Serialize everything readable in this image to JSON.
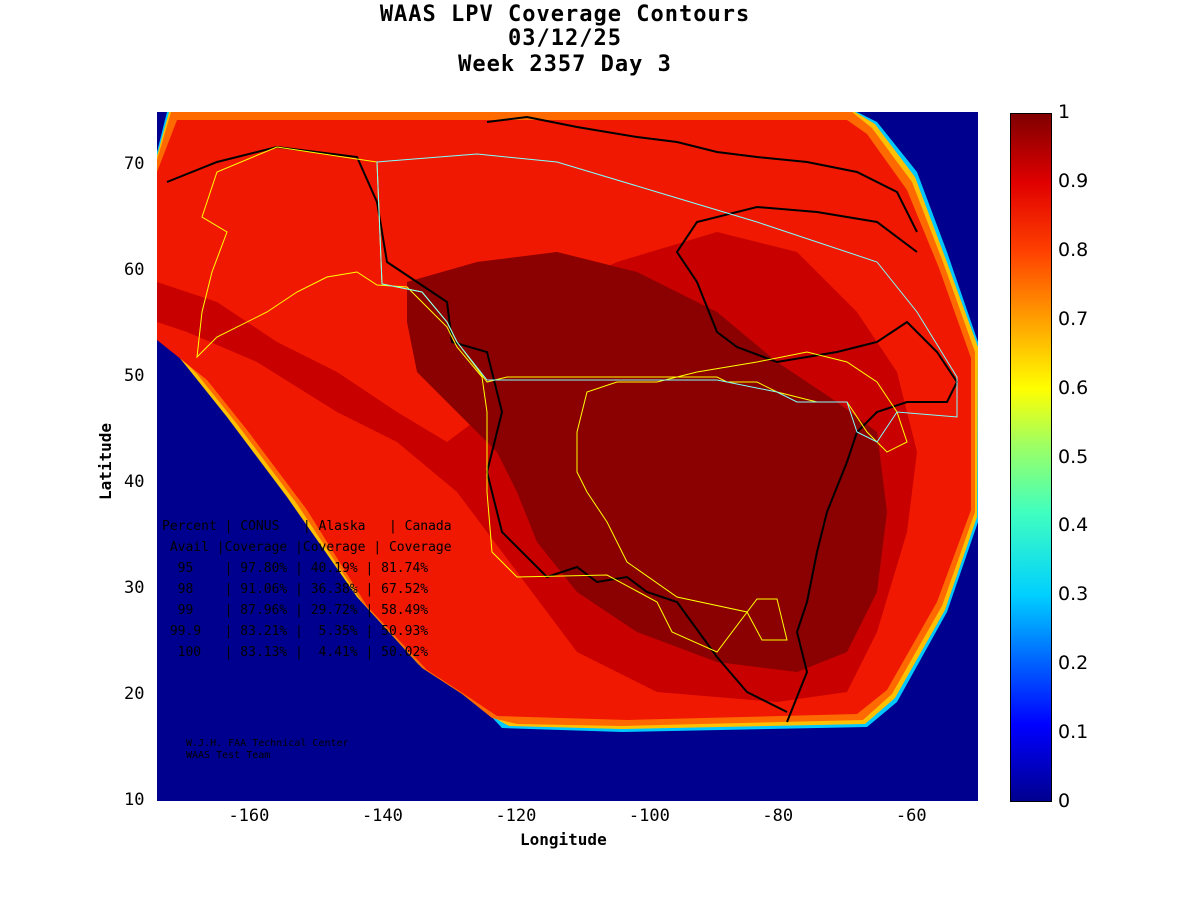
{
  "title": {
    "line1": "WAAS LPV Coverage Contours",
    "line2": "03/12/25",
    "line3": "Week 2357 Day 3"
  },
  "axes": {
    "xlabel": "Longitude",
    "ylabel": "Latitude",
    "xticks": [
      "-160",
      "-140",
      "-120",
      "-100",
      "-80",
      "-60"
    ],
    "yticks": [
      "10",
      "20",
      "30",
      "40",
      "50",
      "60",
      "70"
    ],
    "xlim": [
      -174,
      -51
    ],
    "ylim": [
      10,
      75
    ]
  },
  "colorbar": {
    "ticks": [
      "0",
      "0.1",
      "0.2",
      "0.3",
      "0.4",
      "0.5",
      "0.6",
      "0.7",
      "0.8",
      "0.9",
      "1"
    ],
    "range": [
      0,
      1
    ],
    "colormap": "jet",
    "colors": [
      "#00008f",
      "#0000ff",
      "#00d0ff",
      "#ffff00",
      "#ff4000",
      "#800000"
    ]
  },
  "stats_table": {
    "header1": "Percent | CONUS   | Alaska   | Canada",
    "header2": " Avail |Coverage |Coverage | Coverage",
    "rows": [
      "  95    | 97.80% | 40.19% | 81.74%",
      "  98    | 91.06% | 36.38% | 67.52%",
      "  99    | 87.96% | 29.72% | 58.49%",
      " 99.9   | 83.21% |  5.35% | 50.93%",
      "  100   | 83.13% |  4.41% | 50.02%"
    ]
  },
  "credit": {
    "line1": "W.J.H. FAA Technical Center",
    "line2": "WAAS Test Team"
  }
}
